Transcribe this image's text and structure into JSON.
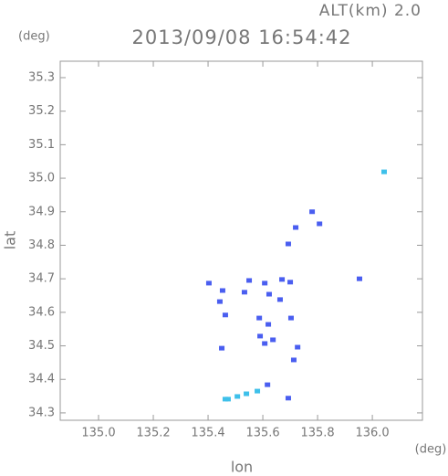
{
  "chart_data": {
    "type": "scatter",
    "title": "2013/09/08 16:54:42",
    "subtitle": "ALT(km) 2.0",
    "y_unit": "(deg)",
    "x_unit": "(deg)",
    "xlabel": "lon",
    "ylabel": "lat",
    "xlim": [
      134.86,
      136.183
    ],
    "ylim": [
      34.278,
      35.349
    ],
    "xticks": [
      {
        "value": 135.0,
        "label": "135.0"
      },
      135.2,
      135.4,
      135.6,
      135.8,
      {
        "value": 136.0,
        "label": "136.0"
      }
    ],
    "yticks": [
      34.3,
      34.4,
      34.5,
      34.6,
      34.7,
      34.8,
      34.9,
      {
        "value": 35.0,
        "label": "35.0"
      },
      35.1,
      35.2,
      35.3
    ],
    "series": [
      {
        "color": "#4a5ef0",
        "x": [
          135.807,
          135.78,
          135.72,
          135.693,
          135.953,
          135.403,
          135.443,
          135.453,
          135.463,
          135.55,
          135.533,
          135.607,
          135.623,
          135.67,
          135.7,
          135.663,
          135.587,
          135.62,
          135.59,
          135.607,
          135.637,
          135.703,
          135.727,
          135.713,
          135.45,
          135.617,
          135.693
        ],
        "values": [
          34.864,
          34.9,
          34.853,
          34.804,
          34.7,
          34.687,
          34.632,
          34.665,
          34.592,
          34.695,
          34.66,
          34.687,
          34.654,
          34.698,
          34.69,
          34.638,
          34.583,
          34.564,
          34.529,
          34.507,
          34.518,
          34.583,
          34.496,
          34.458,
          34.493,
          34.384,
          34.344
        ]
      },
      {
        "color": "#3ec0ea",
        "x": [
          136.043,
          135.463,
          135.473,
          135.507,
          135.54,
          135.58
        ],
        "values": [
          35.019,
          34.341,
          34.341,
          34.349,
          34.357,
          34.365
        ]
      }
    ]
  }
}
